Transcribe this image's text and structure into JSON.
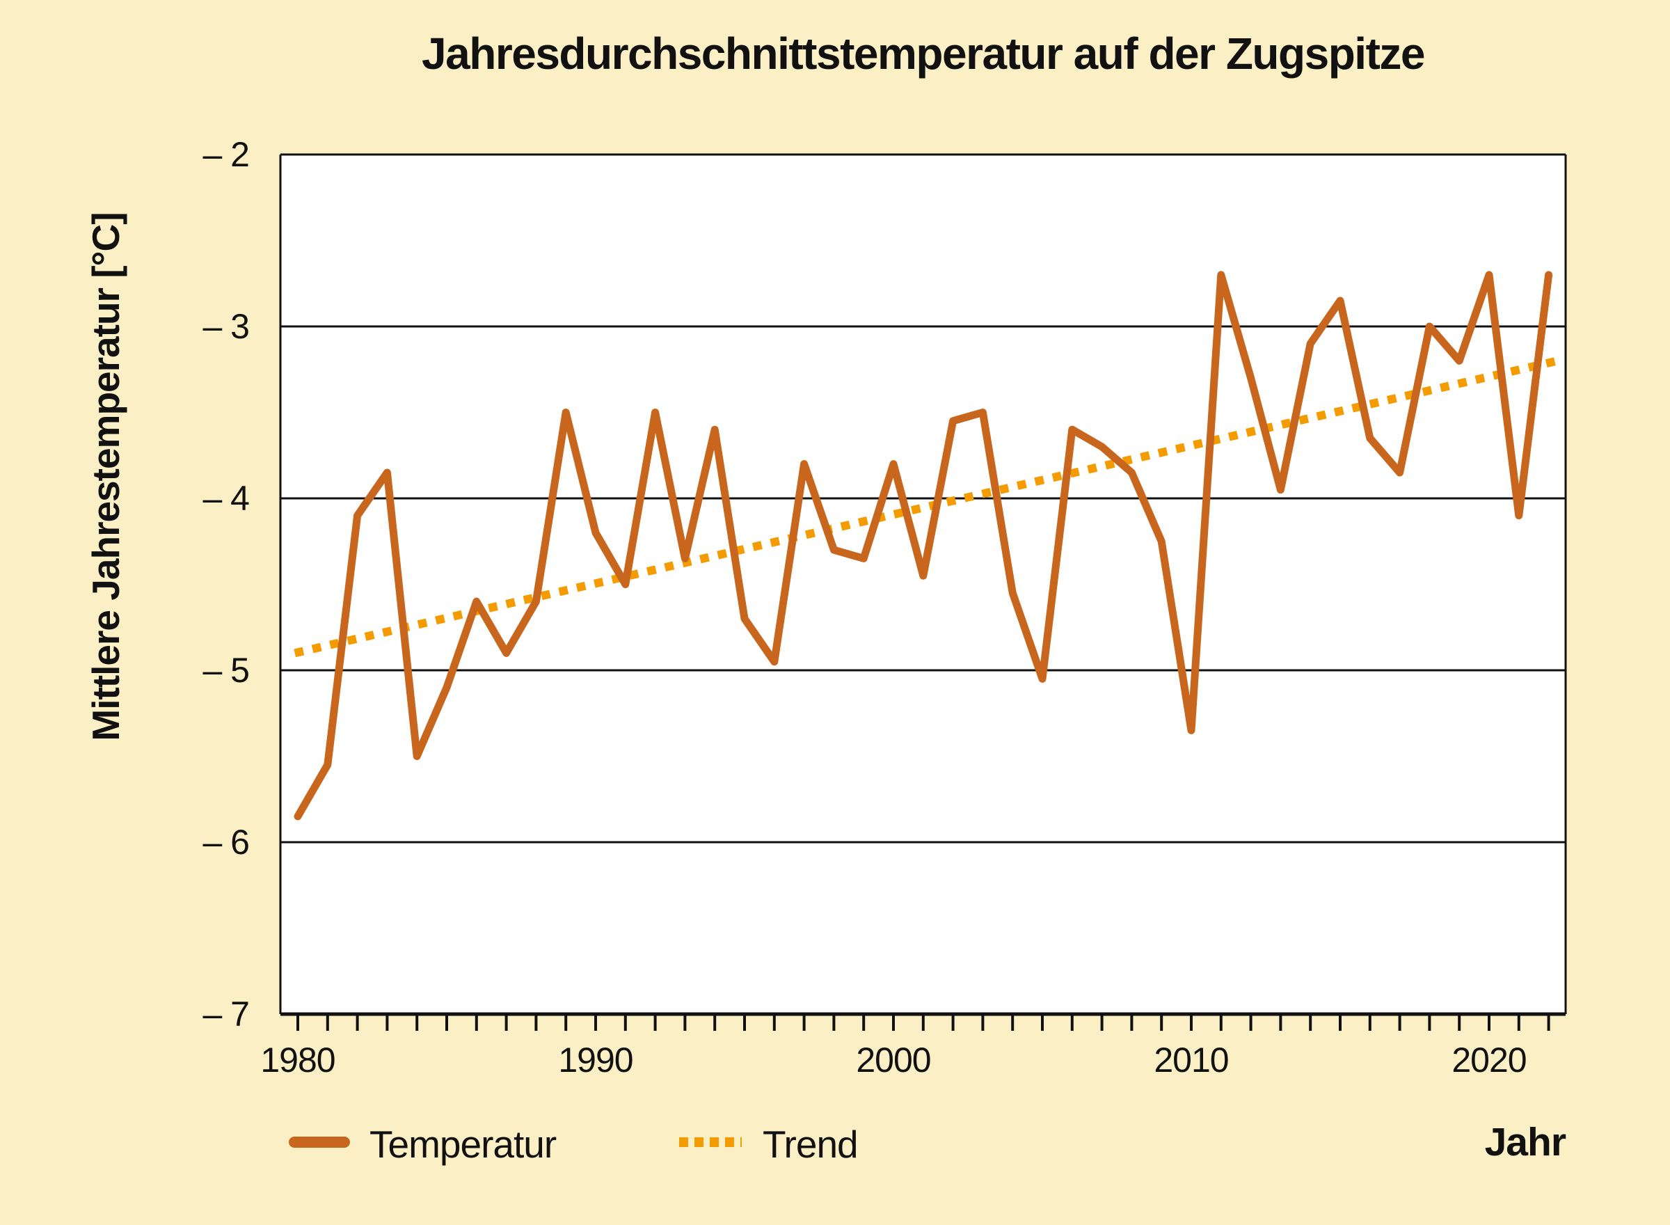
{
  "chart_data": {
    "type": "line",
    "title": "Jahresdurchschnittstemperatur auf der Zugspitze",
    "ylabel": "Mittlere Jahrestemperatur [°C]",
    "xlabel": "Jahr",
    "ylim": [
      -7,
      -2
    ],
    "yticks": [
      -2,
      -3,
      -4,
      -5,
      -6,
      -7
    ],
    "ytick_labels": [
      "– 2",
      "– 3",
      "– 4",
      "– 5",
      "– 6",
      "– 7"
    ],
    "xtick_label_years": [
      1980,
      1990,
      2000,
      2010,
      2020
    ],
    "xtick_labels": [
      "1980",
      "1990",
      "2000",
      "2010",
      "2020"
    ],
    "grid": "horizontal lines at every 1 °C, minor year ticks on x-axis",
    "legend_position": "bottom-left",
    "x": [
      1980,
      1981,
      1982,
      1983,
      1984,
      1985,
      1986,
      1987,
      1988,
      1989,
      1990,
      1991,
      1992,
      1993,
      1994,
      1995,
      1996,
      1997,
      1998,
      1999,
      2000,
      2001,
      2002,
      2003,
      2004,
      2005,
      2006,
      2007,
      2008,
      2009,
      2010,
      2011,
      2012,
      2013,
      2014,
      2015,
      2016,
      2017,
      2018,
      2019,
      2020,
      2021,
      2022
    ],
    "series": [
      {
        "name": "Temperatur",
        "style": "solid",
        "color": "#C7661C",
        "values": [
          -5.85,
          -5.55,
          -4.1,
          -3.85,
          -5.5,
          -5.1,
          -4.6,
          -4.9,
          -4.6,
          -3.5,
          -4.2,
          -4.5,
          -3.5,
          -4.35,
          -3.6,
          -4.7,
          -4.95,
          -3.8,
          -4.3,
          -4.35,
          -3.8,
          -4.45,
          -3.55,
          -3.5,
          -4.55,
          -5.05,
          -3.6,
          -3.7,
          -3.85,
          -4.25,
          -5.35,
          -2.7,
          -3.3,
          -3.95,
          -3.1,
          -2.85,
          -3.65,
          -3.85,
          -3.0,
          -3.2,
          -2.7,
          -4.1,
          -2.7
        ]
      },
      {
        "name": "Trend",
        "style": "dotted",
        "color": "#F49B00",
        "x": [
          1979.9,
          2022.3
        ],
        "values": [
          -4.9,
          -3.2
        ]
      }
    ]
  },
  "colors": {
    "background": "#FBEFC5",
    "plot_background": "#FFFFFF",
    "axis": "#111111",
    "text": "#111111"
  }
}
